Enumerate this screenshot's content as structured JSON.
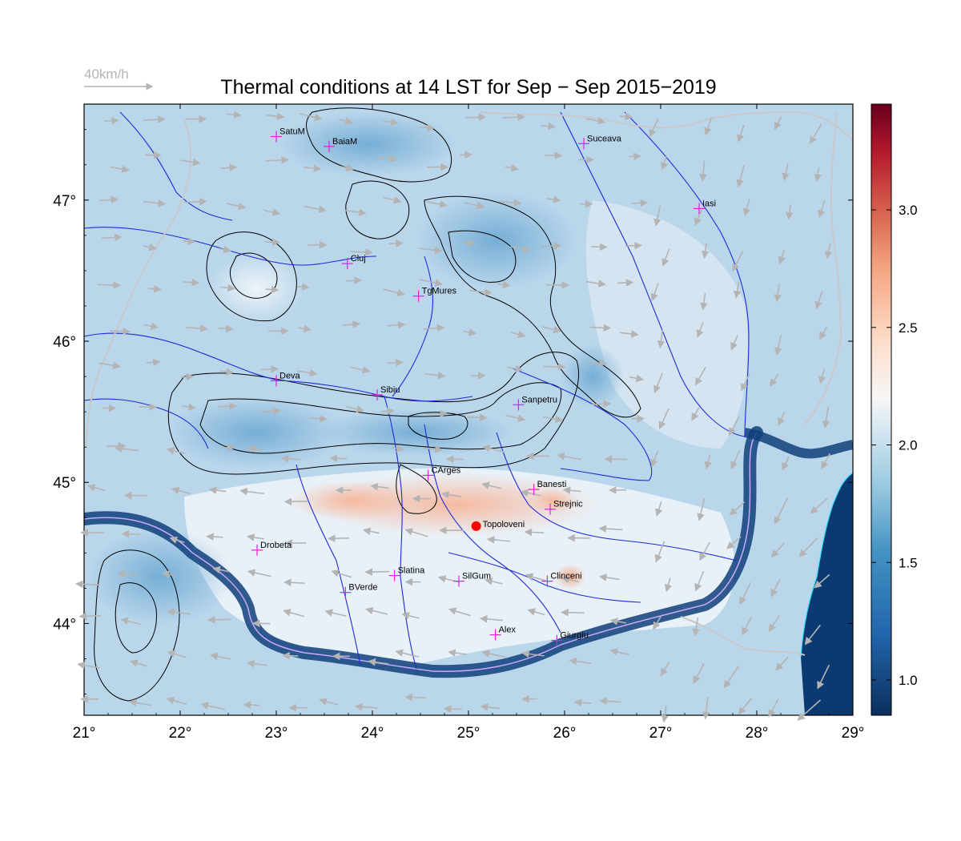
{
  "title": "Thermal conditions at 14 LST for Sep − Sep  2015−2019",
  "wind_legend": {
    "label": "40km/h",
    "arrow_color": "#b4b4b4"
  },
  "map": {
    "lon_range": [
      21,
      29
    ],
    "lat_range": [
      43.35,
      47.68
    ],
    "lon_ticks": [
      21,
      22,
      23,
      24,
      25,
      26,
      27,
      28,
      29
    ],
    "lon_tick_labels": [
      "21°",
      "22°",
      "23°",
      "24°",
      "25°",
      "26°",
      "27°",
      "28°",
      "29°"
    ],
    "lat_ticks": [
      44,
      45,
      46,
      47
    ],
    "lat_tick_labels": [
      "44°",
      "45°",
      "46°",
      "47°"
    ],
    "colors": {
      "river": "#1f2bd6",
      "border": "#c8c8c8",
      "coast": "#33e0ff",
      "contour": "#000000",
      "city_marker": "#e020e0",
      "highlight_marker": "#ff0000",
      "wind_arrow": "#b4b4b4",
      "field_low": "#b7d4ea",
      "field_mid": "#eef4f8",
      "field_high": "#f7c7b0",
      "sea": "#0b3a73"
    }
  },
  "cities": [
    {
      "name": "SatuM",
      "lon": 23.0,
      "lat": 47.45
    },
    {
      "name": "BaiaM",
      "lon": 23.55,
      "lat": 47.38
    },
    {
      "name": "Suceava",
      "lon": 26.2,
      "lat": 47.4
    },
    {
      "name": "Iasi",
      "lon": 27.4,
      "lat": 46.94
    },
    {
      "name": "Cluj",
      "lon": 23.74,
      "lat": 46.55
    },
    {
      "name": "TgMures",
      "lon": 24.48,
      "lat": 46.32
    },
    {
      "name": "Deva",
      "lon": 23.0,
      "lat": 45.72
    },
    {
      "name": "Sibiu",
      "lon": 24.05,
      "lat": 45.62
    },
    {
      "name": "Sanpetru",
      "lon": 25.52,
      "lat": 45.55
    },
    {
      "name": "CArges",
      "lon": 24.58,
      "lat": 45.05
    },
    {
      "name": "Banesti",
      "lon": 25.68,
      "lat": 44.95
    },
    {
      "name": "Strejnic",
      "lon": 25.85,
      "lat": 44.81
    },
    {
      "name": "Drobeta",
      "lon": 22.8,
      "lat": 44.52
    },
    {
      "name": "Slatina",
      "lon": 24.23,
      "lat": 44.34
    },
    {
      "name": "SilGum",
      "lon": 24.9,
      "lat": 44.3
    },
    {
      "name": "Clinceni",
      "lon": 25.82,
      "lat": 44.3
    },
    {
      "name": "BVerde",
      "lon": 23.72,
      "lat": 44.22
    },
    {
      "name": "Alex",
      "lon": 25.28,
      "lat": 43.92
    },
    {
      "name": "Giurgiu",
      "lon": 25.92,
      "lat": 43.88
    }
  ],
  "highlight_station": {
    "name": "Topoloveni",
    "lon": 25.08,
    "lat": 44.69
  },
  "colorbar": {
    "min": 0.85,
    "max": 3.45,
    "ticks": [
      1.0,
      1.5,
      2.0,
      2.5,
      3.0
    ],
    "tick_labels": [
      "1.0",
      "1.5",
      "2.0",
      "2.5",
      "3.0"
    ],
    "stops": [
      {
        "value": 0.85,
        "color": "#0b2f5e"
      },
      {
        "value": 1.2,
        "color": "#2166ac"
      },
      {
        "value": 1.55,
        "color": "#4393c3"
      },
      {
        "value": 1.8,
        "color": "#92c5de"
      },
      {
        "value": 2.05,
        "color": "#d1e5f0"
      },
      {
        "value": 2.2,
        "color": "#f7f7f7"
      },
      {
        "value": 2.45,
        "color": "#fddbc7"
      },
      {
        "value": 2.75,
        "color": "#f4a582"
      },
      {
        "value": 3.0,
        "color": "#d6604d"
      },
      {
        "value": 3.25,
        "color": "#b2182b"
      },
      {
        "value": 3.45,
        "color": "#67001f"
      }
    ]
  }
}
